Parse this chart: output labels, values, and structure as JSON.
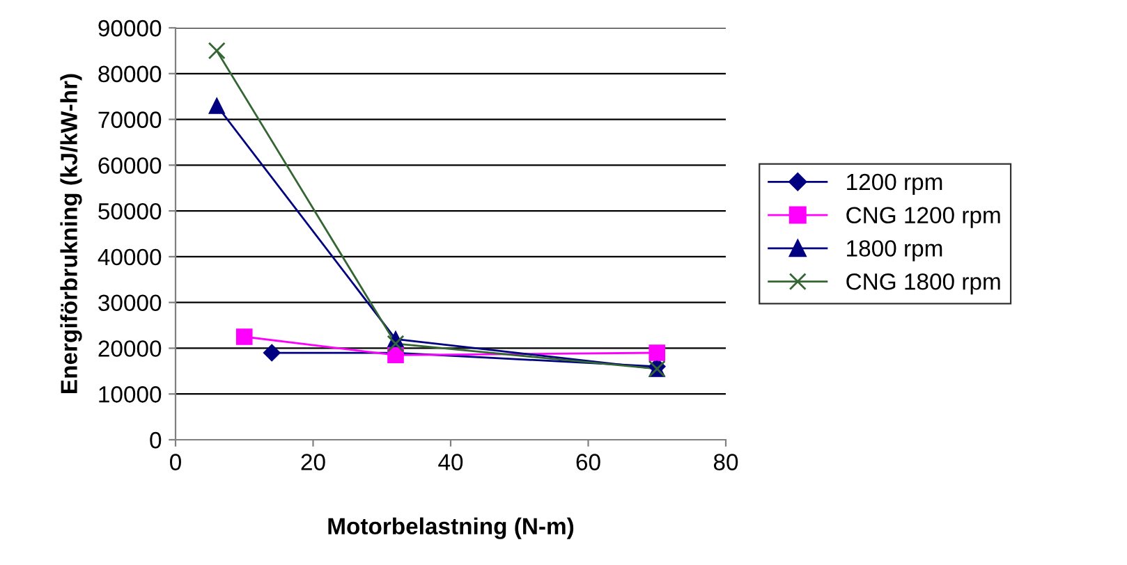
{
  "chart_data": {
    "type": "line",
    "xlabel": "Motorbelastning (N-m)",
    "ylabel": "Energiförbrukning (kJ/kW-hr)",
    "series": [
      {
        "name": "1200 rpm",
        "color": "#000080",
        "marker": "diamond",
        "x": [
          14,
          32,
          70
        ],
        "values": [
          19000,
          19000,
          16000
        ]
      },
      {
        "name": "CNG 1200 rpm",
        "color": "#ff00ff",
        "marker": "square",
        "x": [
          10,
          32,
          70
        ],
        "values": [
          22500,
          18500,
          19000
        ]
      },
      {
        "name": "1800 rpm",
        "color": "#000080",
        "marker": "triangle",
        "x": [
          6,
          32,
          70
        ],
        "values": [
          73000,
          22000,
          15500
        ]
      },
      {
        "name": "CNG 1800 rpm",
        "color": "#336633",
        "marker": "cross",
        "x": [
          6,
          32,
          70
        ],
        "values": [
          85000,
          21000,
          15500
        ]
      }
    ],
    "xlim": [
      0,
      80
    ],
    "xticks": [
      0,
      20,
      40,
      60,
      80
    ],
    "ylim": [
      0,
      90000
    ],
    "yticks": [
      0,
      10000,
      20000,
      30000,
      40000,
      50000,
      60000,
      70000,
      80000,
      90000
    ],
    "grid": "y",
    "legend": "right"
  }
}
